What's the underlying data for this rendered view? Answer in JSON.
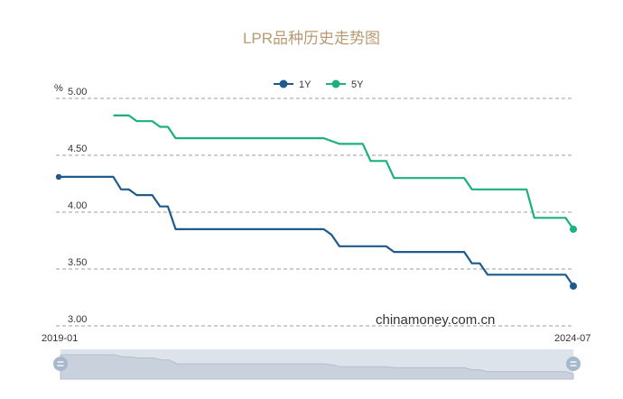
{
  "chart_data": {
    "type": "line",
    "title": "LPR品种历史走势图",
    "ylabel": "%",
    "ylim": [
      3.0,
      5.0
    ],
    "yticks": [
      "5.00",
      "4.50",
      "4.00",
      "3.50",
      "3.00"
    ],
    "xlim": [
      "2019-01",
      "2024-07"
    ],
    "x_range_labels": [
      "2019-01",
      "2024-07"
    ],
    "grid": true,
    "legend_position": "top-center",
    "watermark": "chinamoney.com.cn",
    "series": [
      {
        "name": "1Y",
        "color": "#1f5a8c",
        "points": [
          [
            "2019-01",
            4.31
          ],
          [
            "2019-08",
            4.31
          ],
          [
            "2019-09",
            4.2
          ],
          [
            "2019-10",
            4.2
          ],
          [
            "2019-11",
            4.15
          ],
          [
            "2020-01",
            4.15
          ],
          [
            "2020-02",
            4.05
          ],
          [
            "2020-03",
            4.05
          ],
          [
            "2020-04",
            3.85
          ],
          [
            "2021-11",
            3.85
          ],
          [
            "2021-12",
            3.8
          ],
          [
            "2022-01",
            3.7
          ],
          [
            "2022-07",
            3.7
          ],
          [
            "2022-08",
            3.65
          ],
          [
            "2023-05",
            3.65
          ],
          [
            "2023-06",
            3.55
          ],
          [
            "2023-07",
            3.55
          ],
          [
            "2023-08",
            3.45
          ],
          [
            "2024-06",
            3.45
          ],
          [
            "2024-07",
            3.35
          ]
        ]
      },
      {
        "name": "5Y",
        "color": "#1bb07e",
        "points": [
          [
            "2019-08",
            4.85
          ],
          [
            "2019-10",
            4.85
          ],
          [
            "2019-11",
            4.8
          ],
          [
            "2020-01",
            4.8
          ],
          [
            "2020-02",
            4.75
          ],
          [
            "2020-03",
            4.75
          ],
          [
            "2020-04",
            4.65
          ],
          [
            "2021-11",
            4.65
          ],
          [
            "2022-01",
            4.6
          ],
          [
            "2022-04",
            4.6
          ],
          [
            "2022-05",
            4.45
          ],
          [
            "2022-07",
            4.45
          ],
          [
            "2022-08",
            4.3
          ],
          [
            "2023-05",
            4.3
          ],
          [
            "2023-06",
            4.2
          ],
          [
            "2024-01",
            4.2
          ],
          [
            "2024-02",
            3.95
          ],
          [
            "2024-06",
            3.95
          ],
          [
            "2024-07",
            3.85
          ]
        ]
      }
    ]
  },
  "colors": {
    "title": "#b89a72",
    "slider_track": "#dde3eb",
    "slider_handle": "#a7b7cc"
  }
}
